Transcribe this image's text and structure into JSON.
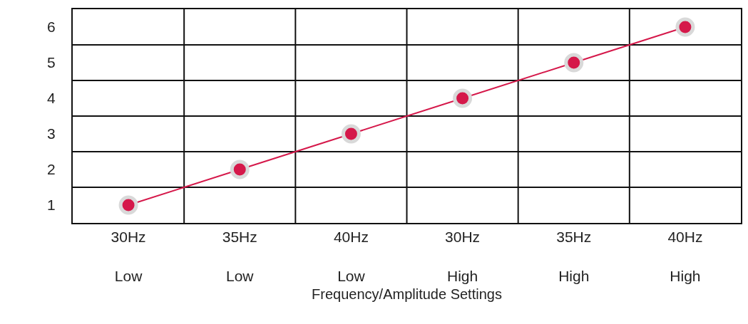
{
  "chart_data": {
    "type": "line",
    "xlabel": "Frequency/Amplitude Settings",
    "categories": [
      "30Hz\nLow",
      "35Hz\nLow",
      "40Hz\nLow",
      "30Hz\nHigh",
      "35Hz\nHigh",
      "40Hz\nHigh"
    ],
    "series": [
      {
        "color": "#d5184a",
        "values": [
          1,
          2,
          3,
          4,
          5,
          6
        ]
      }
    ],
    "ylim": [
      0.5,
      6.5
    ],
    "yticks": [
      1,
      2,
      3,
      4,
      5,
      6
    ],
    "grid": true,
    "marker": "circle",
    "line_style": "solid"
  }
}
